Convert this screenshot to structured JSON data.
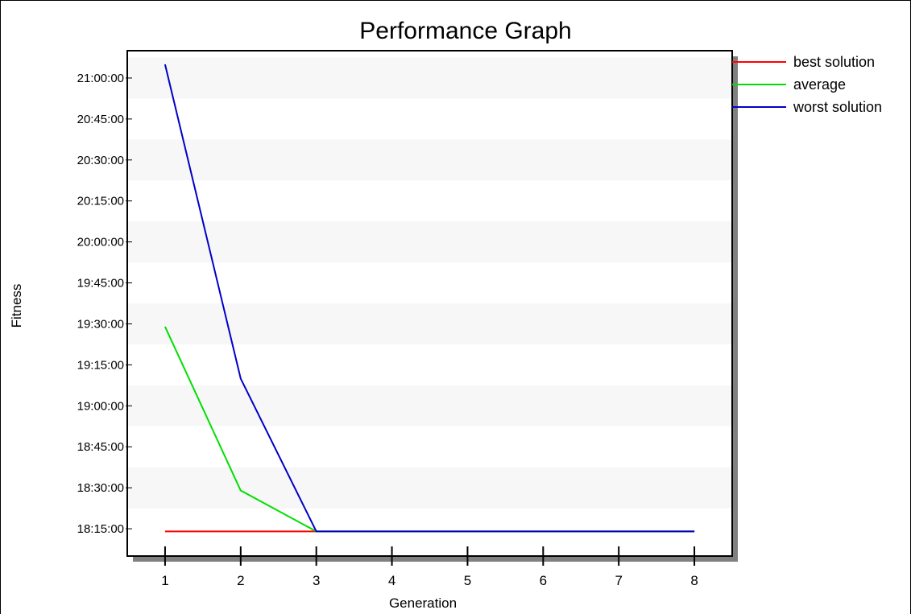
{
  "chart_data": {
    "type": "line",
    "title": "Performance Graph",
    "xlabel": "Generation",
    "ylabel": "Fitness",
    "x": [
      1,
      2,
      3,
      4,
      5,
      6,
      7,
      8
    ],
    "y_ticks": [
      "18:15:00",
      "18:30:00",
      "18:45:00",
      "19:00:00",
      "19:15:00",
      "19:30:00",
      "19:45:00",
      "20:00:00",
      "20:15:00",
      "20:30:00",
      "20:45:00",
      "21:00:00"
    ],
    "series": [
      {
        "name": "best solution",
        "color": "#ff0000",
        "values": [
          "18:14:00",
          "18:14:00",
          "18:14:00",
          "18:14:00",
          "18:14:00",
          "18:14:00",
          "18:14:00",
          "18:14:00"
        ]
      },
      {
        "name": "average",
        "color": "#00e000",
        "values": [
          "19:29:00",
          "18:29:00",
          "18:14:00",
          "18:14:00",
          "18:14:00",
          "18:14:00",
          "18:14:00",
          "18:14:00"
        ]
      },
      {
        "name": "worst solution",
        "color": "#0000c8",
        "values": [
          "21:05:00",
          "19:10:00",
          "18:14:00",
          "18:14:00",
          "18:14:00",
          "18:14:00",
          "18:14:00",
          "18:14:00"
        ]
      }
    ],
    "ylim": [
      "18:05:00",
      "21:10:00"
    ],
    "xlim": [
      0.5,
      8.5
    ],
    "grid": "horizontal bands",
    "legend": "top-right"
  }
}
